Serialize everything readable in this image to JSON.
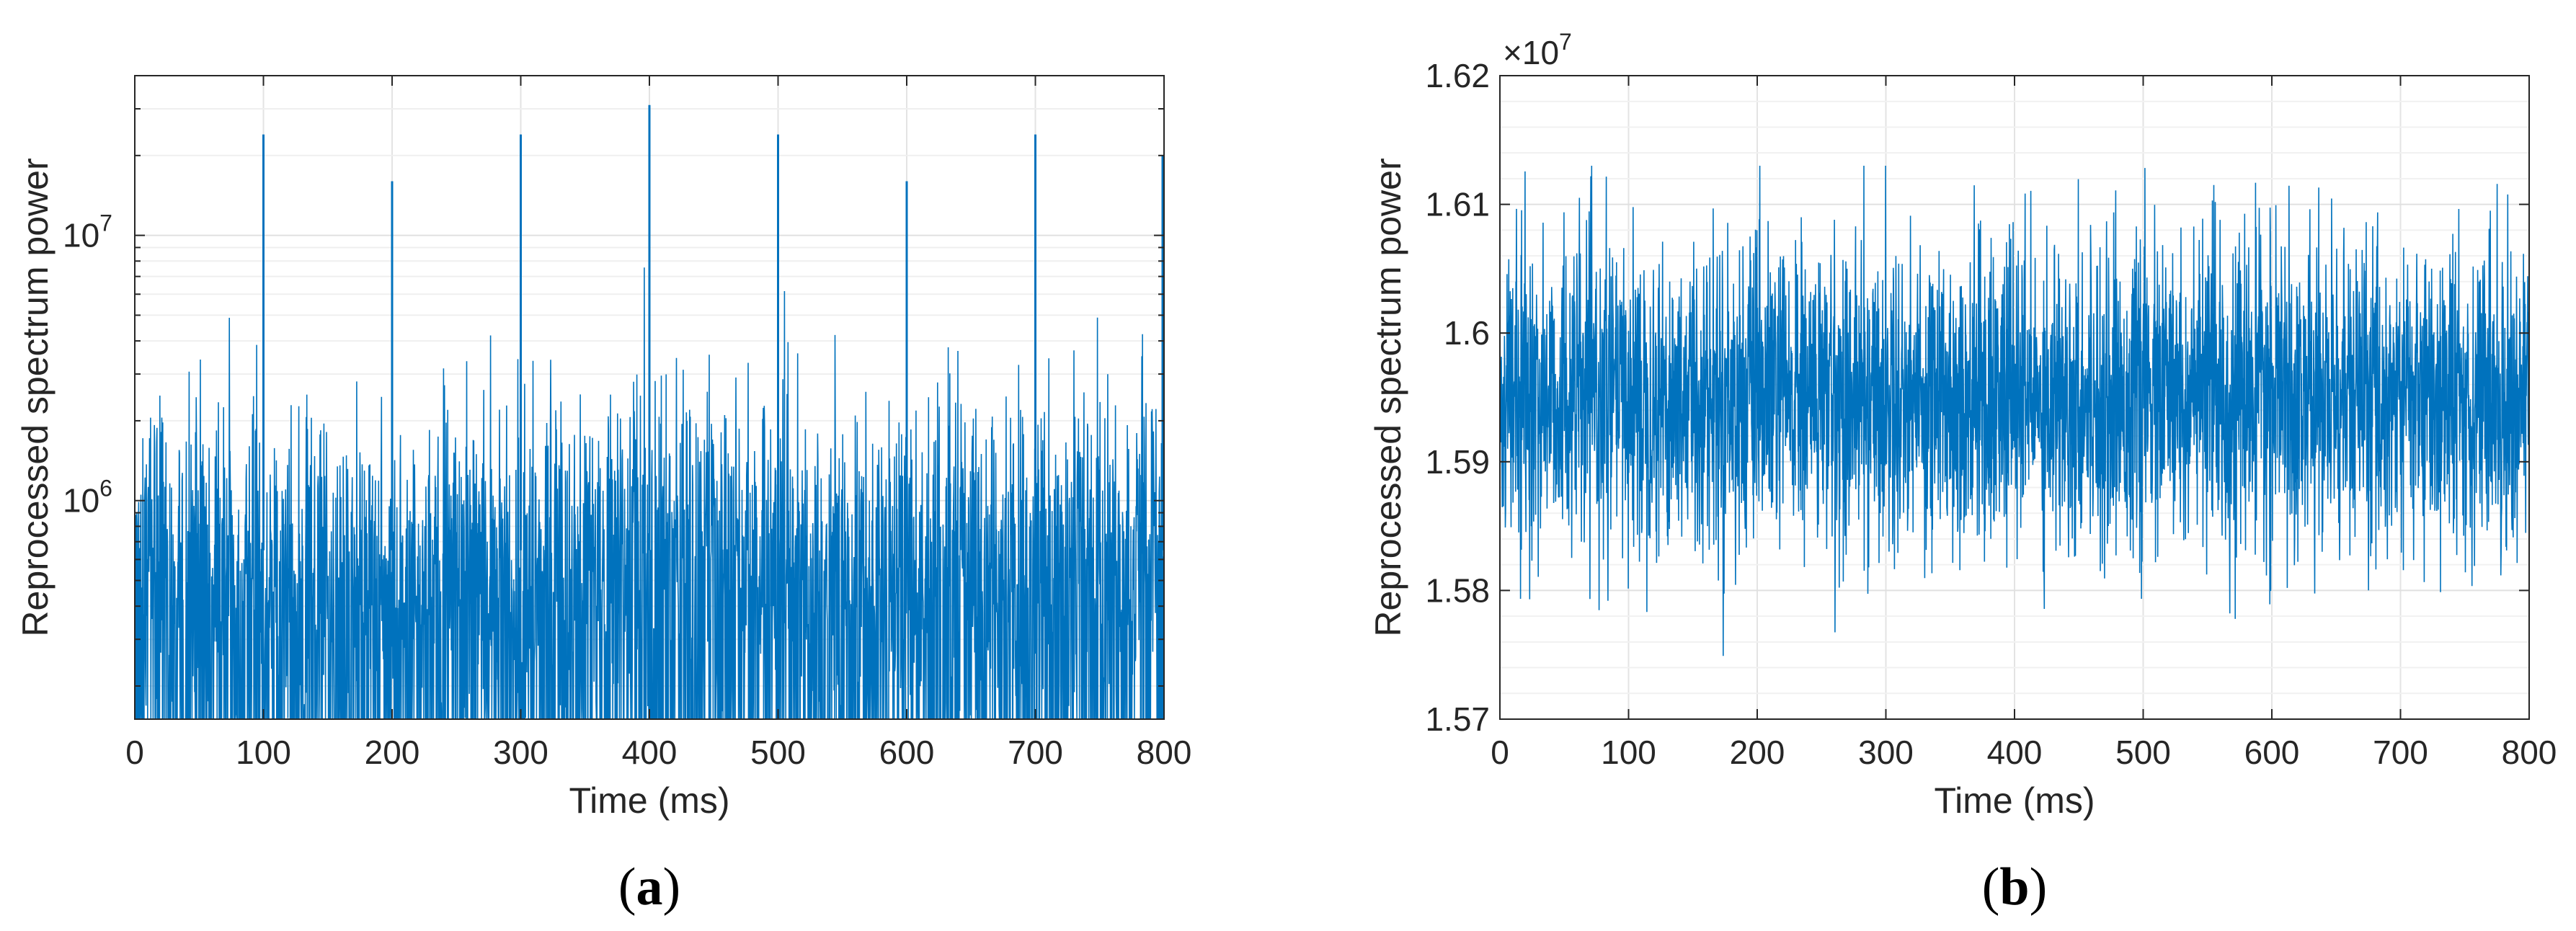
{
  "chart_data": [
    {
      "type": "line",
      "panel_label": "(a)",
      "panel_letter": "a",
      "xlabel": "Time (ms)",
      "ylabel": "Reprocessed spectrum power",
      "yscale": "log",
      "xlim": [
        0,
        800
      ],
      "ylim": [
        150000,
        40000000
      ],
      "x_ticks": [
        0,
        100,
        200,
        300,
        400,
        500,
        600,
        700,
        800
      ],
      "x_tick_labels": [
        "0",
        "100",
        "200",
        "300",
        "400",
        "500",
        "600",
        "700",
        "800"
      ],
      "y_ticks": [
        1000000,
        10000000
      ],
      "y_tick_base": [
        "10",
        "10"
      ],
      "y_tick_exp": [
        "6",
        "7"
      ],
      "grid": true,
      "color": "#0072bd",
      "noise_envelope": [
        {
          "t": 0,
          "upper": 3500000,
          "median": 650000
        },
        {
          "t": 100,
          "upper": 2600000,
          "median": 620000
        },
        {
          "t": 200,
          "upper": 2100000,
          "median": 480000
        },
        {
          "t": 300,
          "upper": 3000000,
          "median": 600000
        },
        {
          "t": 400,
          "upper": 3100000,
          "median": 700000
        },
        {
          "t": 500,
          "upper": 2800000,
          "median": 600000
        },
        {
          "t": 600,
          "upper": 2300000,
          "median": 520000
        },
        {
          "t": 700,
          "upper": 2700000,
          "median": 620000
        },
        {
          "t": 800,
          "upper": 3600000,
          "median": 700000
        }
      ],
      "spikes": [
        {
          "t": 100,
          "value": 24000000
        },
        {
          "t": 200,
          "value": 16000000
        },
        {
          "t": 300,
          "value": 24000000
        },
        {
          "t": 400,
          "value": 31000000
        },
        {
          "t": 500,
          "value": 24000000
        },
        {
          "t": 600,
          "value": 16000000
        },
        {
          "t": 700,
          "value": 24000000
        },
        {
          "t": 800,
          "value": 20000000
        }
      ]
    },
    {
      "type": "line",
      "panel_label": "(b)",
      "panel_letter": "b",
      "xlabel": "Time (ms)",
      "ylabel": "Reprocessed spectrum power",
      "yscale": "linear",
      "xlim": [
        0,
        800
      ],
      "ylim": [
        15700000,
        16200000
      ],
      "x_ticks": [
        0,
        100,
        200,
        300,
        400,
        500,
        600,
        700,
        800
      ],
      "x_tick_labels": [
        "0",
        "100",
        "200",
        "300",
        "400",
        "500",
        "600",
        "700",
        "800"
      ],
      "y_ticks": [
        15700000,
        15800000,
        15900000,
        16000000,
        16100000,
        16200000
      ],
      "y_tick_labels": [
        "1.57",
        "1.58",
        "1.59",
        "1.6",
        "1.61",
        "1.62"
      ],
      "y_multiplier_base": "10",
      "y_multiplier_exp": "7",
      "grid": true,
      "color": "#0072bd",
      "mean": 15950000,
      "dense_band": [
        15920000,
        15985000
      ],
      "noise_max": 16130000,
      "noise_min": 15735000
    }
  ]
}
